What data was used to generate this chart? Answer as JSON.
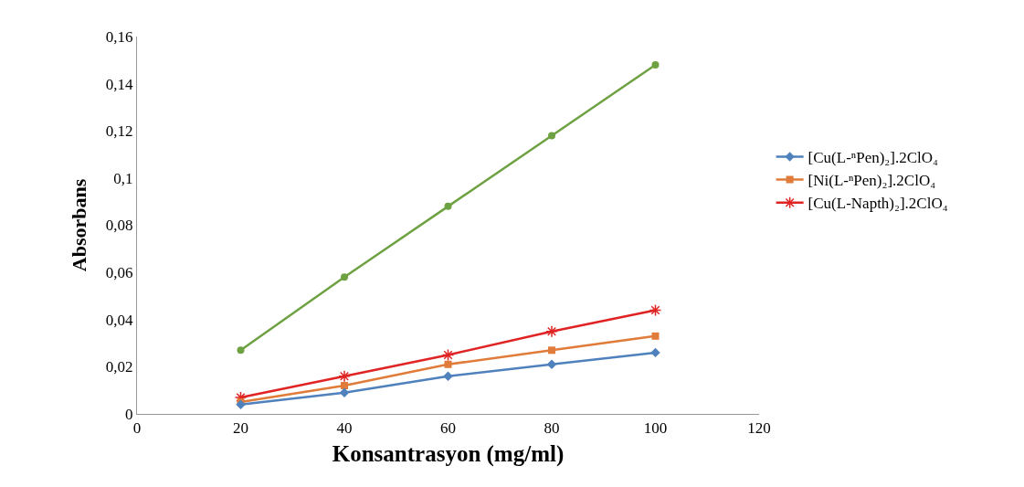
{
  "chart_data": {
    "type": "line",
    "xlabel": "Konsantrasyon (mg/ml)",
    "ylabel": "Absorbans",
    "x": [
      20,
      40,
      60,
      80,
      100
    ],
    "series": [
      {
        "name": "[Cu(L-ⁿPen)₂].2ClO₄",
        "color": "#4f81bd",
        "marker": "diamond",
        "values": [
          0.004,
          0.009,
          0.016,
          0.021,
          0.026
        ]
      },
      {
        "name": "[Ni(L-ⁿPen)₂].2ClO₄",
        "color": "#e07b39",
        "marker": "square",
        "values": [
          0.005,
          0.012,
          0.021,
          0.027,
          0.033
        ]
      },
      {
        "name": "[Cu(L-Napth)₂].2ClO₄",
        "color": "#e02424",
        "marker": "cross",
        "values": [
          0.007,
          0.016,
          0.025,
          0.035,
          0.044
        ]
      },
      {
        "color": "#6ea142",
        "marker": "circle",
        "values": [
          0.027,
          0.058,
          0.088,
          0.118,
          0.148
        ]
      }
    ],
    "xlim": [
      0,
      120
    ],
    "xticks": [
      0,
      20,
      40,
      60,
      80,
      100,
      120
    ],
    "ylim": [
      0,
      0.16
    ],
    "yticks": [
      0,
      {
        "value": 0.02,
        "label": "0,02"
      },
      {
        "value": 0.04,
        "label": "0,04"
      },
      {
        "value": 0.06,
        "label": "0,06"
      },
      {
        "value": 0.08,
        "label": "0,08"
      },
      {
        "value": 0.1,
        "label": "0,1"
      },
      {
        "value": 0.12,
        "label": "0,12"
      },
      {
        "value": 0.14,
        "label": "0,14"
      },
      {
        "value": 0.16,
        "label": "0,16"
      }
    ],
    "grid": false,
    "legend": "right",
    "line_style": "solid"
  }
}
